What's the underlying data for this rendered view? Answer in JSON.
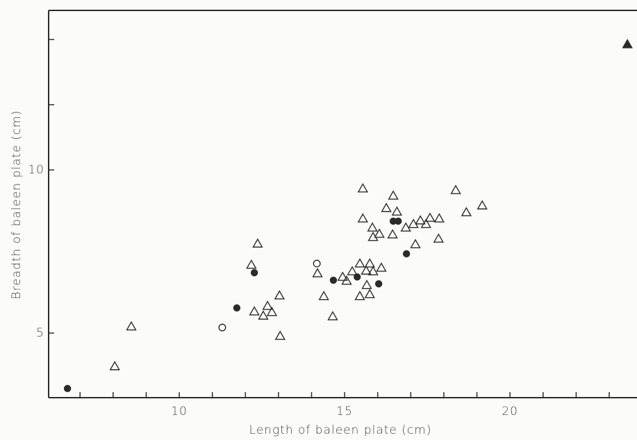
{
  "chart_data": {
    "type": "scatter",
    "xlabel": "Length of baleen plate (cm)",
    "ylabel": "Breadth of baleen plate (cm)",
    "xlim": [
      6.05,
      23.84
    ],
    "ylim": [
      3.02,
      14.89
    ],
    "xticks": [
      10,
      15,
      20
    ],
    "yticks": [
      5,
      10
    ],
    "xminorticks": [
      7,
      8,
      9,
      11,
      12,
      13,
      14,
      16,
      17,
      18,
      19,
      21,
      22,
      23
    ],
    "yminorticks": [
      12,
      14
    ],
    "color": "#2b2b2b",
    "series": [
      {
        "marker": "triangle-open",
        "x": [
          8.05,
          8.55,
          12.18,
          12.37,
          12.27,
          12.54,
          12.67,
          12.8,
          13.03,
          13.05,
          14.18,
          14.37,
          14.64,
          14.94,
          15.06,
          15.23,
          15.46,
          15.46,
          15.55,
          15.55,
          15.65,
          15.67,
          15.76,
          15.76,
          15.86,
          15.84,
          15.86,
          16.05,
          16.11,
          16.26,
          16.47,
          16.45,
          16.58,
          16.85,
          17.08,
          17.14,
          17.29,
          17.46,
          17.58,
          17.86,
          17.84,
          18.36,
          18.68,
          19.16
        ],
        "y": [
          3.98,
          5.2,
          7.09,
          7.74,
          5.66,
          5.53,
          5.83,
          5.64,
          6.15,
          4.91,
          6.83,
          6.13,
          5.51,
          6.72,
          6.6,
          6.89,
          7.13,
          6.13,
          9.43,
          8.51,
          6.91,
          6.47,
          6.19,
          7.13,
          6.89,
          8.23,
          7.94,
          8.04,
          7.0,
          8.83,
          9.21,
          8.02,
          8.72,
          8.23,
          8.34,
          7.72,
          8.45,
          8.34,
          8.53,
          8.51,
          7.89,
          9.38,
          8.7,
          8.91
        ]
      },
      {
        "marker": "circle-filled",
        "x": [
          6.62,
          11.74,
          12.27,
          14.66,
          15.38,
          16.03,
          16.47,
          16.62,
          16.87
        ],
        "y": [
          3.3,
          5.77,
          6.85,
          6.62,
          6.72,
          6.51,
          8.43,
          8.43,
          7.43
        ]
      },
      {
        "marker": "circle-open",
        "x": [
          11.3,
          14.16
        ],
        "y": [
          5.17,
          7.13
        ]
      },
      {
        "marker": "triangle-filled",
        "x": [
          23.55
        ],
        "y": [
          13.85
        ]
      }
    ]
  }
}
